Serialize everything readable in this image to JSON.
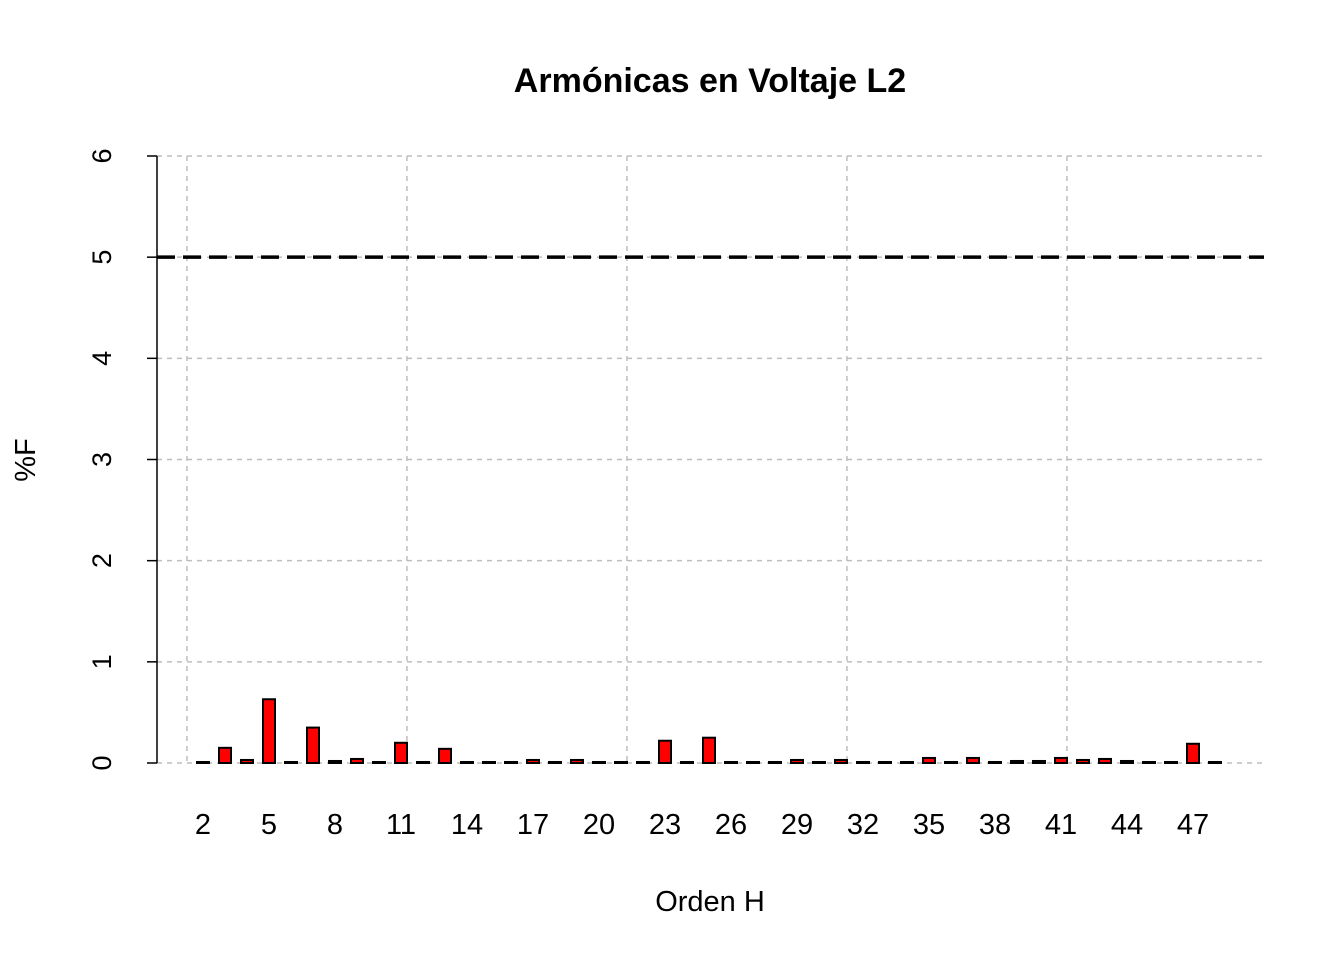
{
  "chart_data": {
    "type": "bar",
    "title": "Armónicas en Voltaje L2",
    "xlabel": "Orden H",
    "ylabel": "%F",
    "ylim": [
      0,
      6
    ],
    "yticks": [
      "0",
      "1",
      "2",
      "3",
      "4",
      "5",
      "6"
    ],
    "xtick_labels": [
      "2",
      "5",
      "8",
      "11",
      "14",
      "17",
      "20",
      "23",
      "26",
      "29",
      "32",
      "35",
      "38",
      "41",
      "44",
      "47"
    ],
    "categories": [
      2,
      3,
      4,
      5,
      6,
      7,
      8,
      9,
      10,
      11,
      12,
      13,
      14,
      15,
      16,
      17,
      18,
      19,
      20,
      21,
      22,
      23,
      24,
      25,
      26,
      27,
      28,
      29,
      30,
      31,
      32,
      33,
      34,
      35,
      36,
      37,
      38,
      39,
      40,
      41,
      42,
      43,
      44,
      45,
      46,
      47,
      48
    ],
    "values": [
      0.01,
      0.15,
      0.03,
      0.63,
      0.01,
      0.35,
      0.02,
      0.04,
      0.01,
      0.2,
      0.01,
      0.14,
      0.01,
      0.01,
      0.01,
      0.03,
      0.01,
      0.03,
      0.01,
      0.01,
      0.01,
      0.22,
      0.01,
      0.25,
      0.01,
      0.01,
      0.01,
      0.03,
      0.01,
      0.03,
      0.01,
      0.01,
      0.01,
      0.05,
      0.01,
      0.05,
      0.01,
      0.02,
      0.02,
      0.05,
      0.03,
      0.04,
      0.02,
      0.01,
      0.01,
      0.19,
      0.01
    ],
    "limit_line": 5,
    "bar_color": "#ff0000",
    "grid": true
  }
}
